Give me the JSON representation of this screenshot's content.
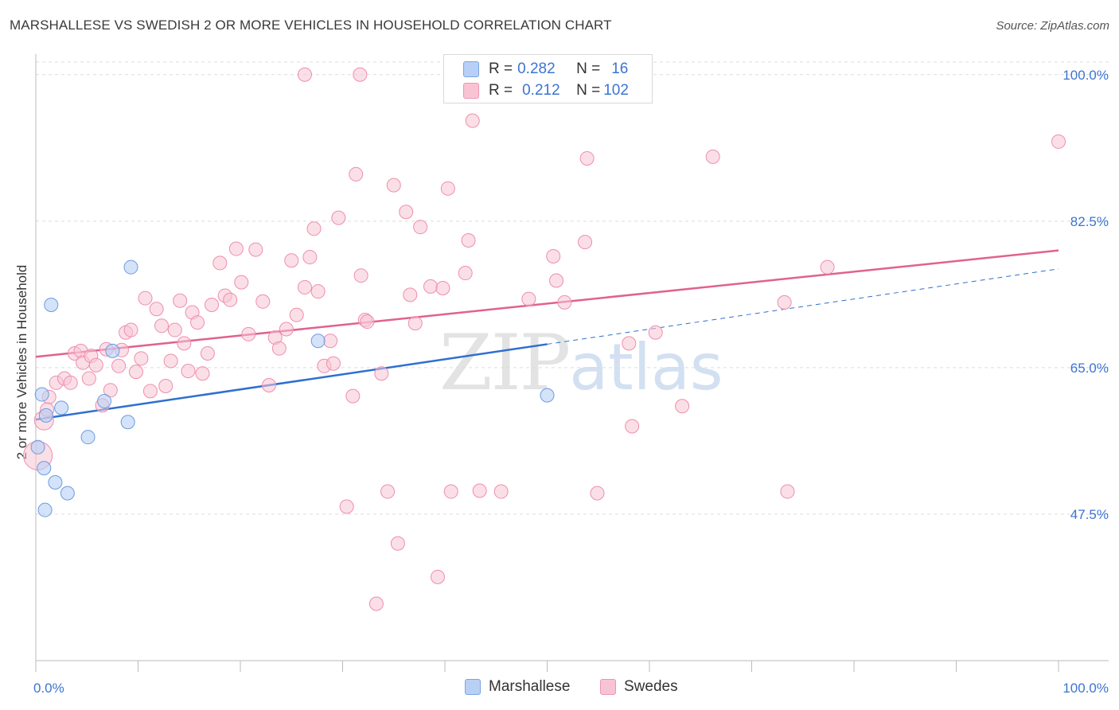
{
  "title": "MARSHALLESE VS SWEDISH 2 OR MORE VEHICLES IN HOUSEHOLD CORRELATION CHART",
  "source": "Source: ZipAtlas.com",
  "watermark": {
    "zip": "ZIP",
    "atlas": "atlas"
  },
  "legend": {
    "rows": [
      {
        "r_label": "R =",
        "r_value": "0.282",
        "n_label": "N =",
        "n_value": "16",
        "color": "#b8d0f5"
      },
      {
        "r_label": "R =",
        "r_value": "0.212",
        "n_label": "N =",
        "n_value": "102",
        "color": "#f8c4d3"
      }
    ]
  },
  "bottom_legend": [
    "Marshallese",
    "Swedes"
  ],
  "chart_data": {
    "type": "scatter",
    "title": "MARSHALLESE VS SWEDISH 2 OR MORE VEHICLES IN HOUSEHOLD CORRELATION CHART",
    "xlabel": "",
    "ylabel": "2 or more Vehicles in Household",
    "xlim": [
      0,
      100
    ],
    "ylim": [
      30,
      101.5
    ],
    "x_tick_labels": [
      "0.0%",
      "100.0%"
    ],
    "y_ticks": [
      100.0,
      82.5,
      65.0,
      47.5
    ],
    "y_tick_labels": [
      "100.0%",
      "82.5%",
      "65.0%",
      "47.5%"
    ],
    "grid": true,
    "legend_position": "top-center",
    "colors": {
      "Marshallese": "#6c9be0",
      "Swedes": "#ee8eaf",
      "blue_line": "#2f6fd0",
      "pink_line": "#e0628f"
    },
    "series": [
      {
        "name": "Marshallese",
        "points": [
          [
            0.2,
            55.5
          ],
          [
            0.6,
            61.8
          ],
          [
            0.8,
            53.0
          ],
          [
            1.0,
            59.3
          ],
          [
            1.5,
            72.5
          ],
          [
            1.9,
            51.3
          ],
          [
            2.5,
            60.2
          ],
          [
            3.1,
            50.0
          ],
          [
            0.9,
            48.0
          ],
          [
            5.1,
            56.7
          ],
          [
            6.7,
            61.0
          ],
          [
            7.5,
            67.0
          ],
          [
            9.0,
            58.5
          ],
          [
            9.3,
            77.0
          ],
          [
            27.6,
            68.2
          ],
          [
            50.0,
            61.7
          ]
        ],
        "trend": {
          "x": [
            0,
            50
          ],
          "y": [
            58.8,
            67.8
          ]
        },
        "trend_extended": {
          "x": [
            50,
            100
          ],
          "y": [
            67.8,
            76.8
          ]
        }
      },
      {
        "name": "Swedes",
        "points": [
          [
            0.2,
            54.5
          ],
          [
            0.8,
            58.7
          ],
          [
            1.3,
            61.5
          ],
          [
            1.1,
            60.0
          ],
          [
            2.0,
            63.2
          ],
          [
            2.8,
            63.7
          ],
          [
            3.4,
            63.2
          ],
          [
            3.8,
            66.7
          ],
          [
            4.4,
            67.0
          ],
          [
            4.6,
            65.6
          ],
          [
            5.4,
            66.4
          ],
          [
            5.2,
            63.7
          ],
          [
            5.9,
            65.3
          ],
          [
            6.5,
            60.5
          ],
          [
            7.3,
            62.3
          ],
          [
            6.9,
            67.2
          ],
          [
            8.1,
            65.2
          ],
          [
            8.4,
            67.1
          ],
          [
            8.8,
            69.2
          ],
          [
            9.3,
            69.5
          ],
          [
            9.8,
            64.5
          ],
          [
            10.3,
            66.1
          ],
          [
            10.7,
            73.3
          ],
          [
            11.2,
            62.2
          ],
          [
            11.8,
            72.0
          ],
          [
            12.3,
            70.0
          ],
          [
            12.7,
            62.8
          ],
          [
            13.2,
            65.8
          ],
          [
            13.6,
            69.5
          ],
          [
            14.1,
            73.0
          ],
          [
            14.5,
            67.9
          ],
          [
            14.9,
            64.6
          ],
          [
            15.3,
            71.6
          ],
          [
            15.8,
            70.4
          ],
          [
            16.3,
            64.3
          ],
          [
            16.8,
            66.7
          ],
          [
            17.2,
            72.5
          ],
          [
            18.0,
            77.5
          ],
          [
            18.5,
            73.6
          ],
          [
            19.0,
            73.1
          ],
          [
            19.6,
            79.2
          ],
          [
            20.1,
            75.2
          ],
          [
            20.8,
            69.0
          ],
          [
            21.5,
            79.1
          ],
          [
            22.2,
            72.9
          ],
          [
            22.8,
            62.9
          ],
          [
            23.4,
            68.6
          ],
          [
            23.8,
            67.3
          ],
          [
            24.5,
            69.6
          ],
          [
            25.0,
            77.8
          ],
          [
            25.5,
            71.3
          ],
          [
            26.3,
            74.6
          ],
          [
            26.8,
            78.2
          ],
          [
            27.2,
            81.6
          ],
          [
            27.6,
            74.1
          ],
          [
            28.2,
            65.2
          ],
          [
            28.8,
            68.2
          ],
          [
            29.1,
            65.5
          ],
          [
            29.6,
            82.9
          ],
          [
            30.4,
            48.4
          ],
          [
            31.0,
            61.6
          ],
          [
            31.3,
            88.1
          ],
          [
            31.8,
            76.0
          ],
          [
            32.2,
            70.7
          ],
          [
            32.4,
            70.5
          ],
          [
            33.3,
            36.8
          ],
          [
            33.8,
            64.3
          ],
          [
            34.4,
            50.2
          ],
          [
            35.0,
            86.8
          ],
          [
            35.4,
            44.0
          ],
          [
            36.2,
            83.6
          ],
          [
            36.6,
            73.7
          ],
          [
            37.1,
            70.3
          ],
          [
            37.6,
            81.8
          ],
          [
            38.6,
            74.7
          ],
          [
            39.3,
            40.0
          ],
          [
            39.8,
            74.5
          ],
          [
            40.3,
            86.4
          ],
          [
            40.6,
            50.2
          ],
          [
            42.0,
            76.3
          ],
          [
            42.3,
            80.2
          ],
          [
            42.7,
            94.5
          ],
          [
            43.4,
            50.3
          ],
          [
            45.5,
            50.2
          ],
          [
            48.2,
            73.2
          ],
          [
            50.6,
            78.3
          ],
          [
            50.9,
            75.4
          ],
          [
            51.7,
            72.8
          ],
          [
            53.7,
            80.0
          ],
          [
            53.9,
            90.0
          ],
          [
            54.9,
            50.0
          ],
          [
            58.0,
            67.9
          ],
          [
            58.3,
            58.0
          ],
          [
            60.6,
            69.2
          ],
          [
            63.2,
            60.4
          ],
          [
            66.2,
            90.2
          ],
          [
            73.2,
            72.8
          ],
          [
            73.5,
            50.2
          ],
          [
            77.4,
            77.0
          ],
          [
            31.7,
            100.0
          ],
          [
            26.3,
            100.0
          ],
          [
            56.3,
            100.0
          ],
          [
            100.0,
            92.0
          ]
        ],
        "trend": {
          "x": [
            0,
            100
          ],
          "y": [
            66.3,
            79.0
          ]
        }
      }
    ]
  }
}
